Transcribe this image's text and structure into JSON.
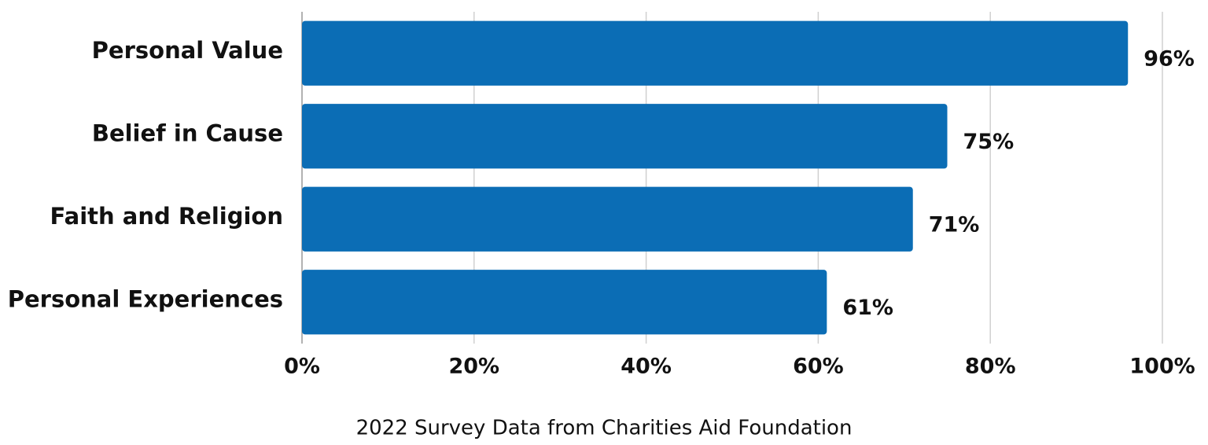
{
  "chart_data": {
    "type": "bar",
    "orientation": "horizontal",
    "categories": [
      "Personal Value",
      "Belief in Cause",
      "Faith and Religion",
      "Personal Experiences"
    ],
    "values": [
      96,
      75,
      71,
      61
    ],
    "value_labels": [
      "96%",
      "75%",
      "71%",
      "61%"
    ],
    "color": "#0b6db5",
    "xlim": [
      0,
      100
    ],
    "xticks": [
      {
        "value": 0,
        "label": "0%"
      },
      {
        "value": 20,
        "label": "20%"
      },
      {
        "value": 40,
        "label": "40%"
      },
      {
        "value": 60,
        "label": "60%"
      },
      {
        "value": 80,
        "label": "80%"
      },
      {
        "value": 100,
        "label": "100%"
      }
    ],
    "grid": true,
    "xlabel": "2022 Survey Data from Charities Aid Foundation"
  }
}
